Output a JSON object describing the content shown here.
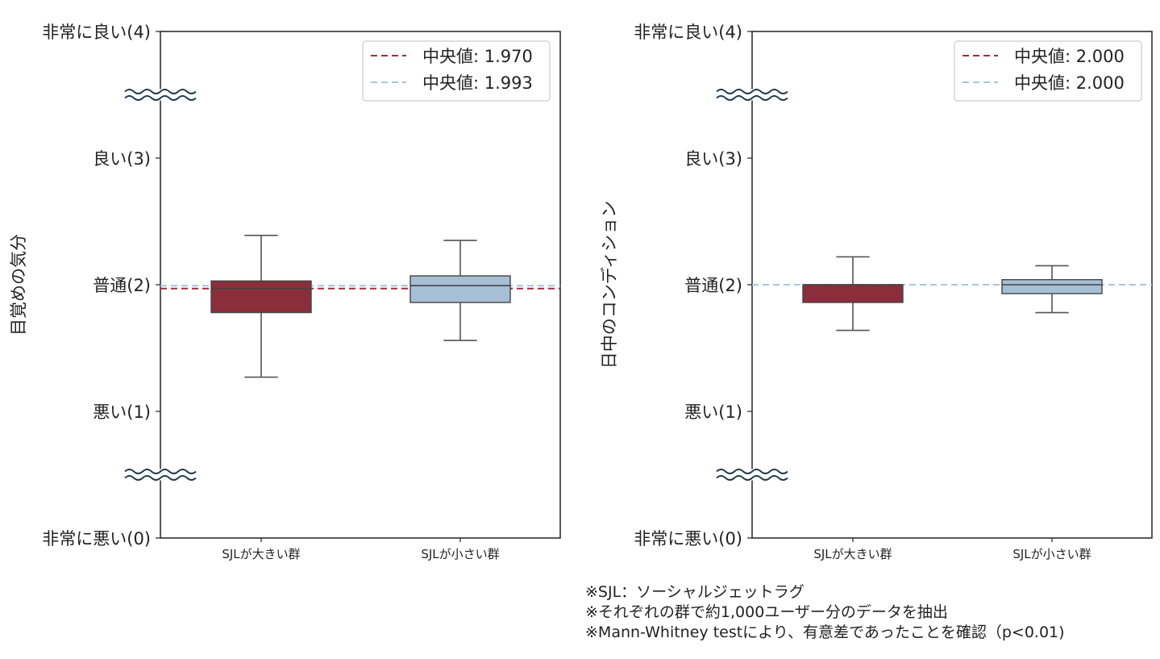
{
  "chart_data": [
    {
      "type": "box",
      "ylabel": "目覚めの気分",
      "xlabel": "",
      "ylim": [
        0,
        4
      ],
      "y_ticks": [
        {
          "value": 4,
          "label": "非常に良い(4)"
        },
        {
          "value": 3,
          "label": "良い(3)"
        },
        {
          "value": 2,
          "label": "普通(2)"
        },
        {
          "value": 1,
          "label": "悪い(1)"
        },
        {
          "value": 0,
          "label": "非常に悪い(0)"
        }
      ],
      "axis_breaks": [
        3.5,
        0.5
      ],
      "categories": [
        "SJLが大きい群",
        "SJLが小さい群"
      ],
      "boxes": [
        {
          "category": "SJLが大きい群",
          "whisker_low": 1.27,
          "q1": 1.78,
          "median": 1.97,
          "q3": 2.03,
          "whisker_high": 2.39,
          "color": "#8b2d3a"
        },
        {
          "category": "SJLが小さい群",
          "whisker_low": 1.56,
          "q1": 1.86,
          "median": 1.993,
          "q3": 2.07,
          "whisker_high": 2.35,
          "color": "#a7bfd6"
        }
      ],
      "median_lines": [
        {
          "value": 1.97,
          "color": "#a52a3a"
        },
        {
          "value": 1.993,
          "color": "#a7c6dc"
        }
      ],
      "legend": {
        "placement": "top-right",
        "entries": [
          "中央値: 1.970",
          "中央値: 1.993"
        ]
      },
      "grid": false
    },
    {
      "type": "box",
      "ylabel": "日中のコンディション",
      "xlabel": "",
      "ylim": [
        0,
        4
      ],
      "y_ticks": [
        {
          "value": 4,
          "label": "非常に良い(4)"
        },
        {
          "value": 3,
          "label": "良い(3)"
        },
        {
          "value": 2,
          "label": "普通(2)"
        },
        {
          "value": 1,
          "label": "悪い(1)"
        },
        {
          "value": 0,
          "label": "非常に悪い(0)"
        }
      ],
      "axis_breaks": [
        3.5,
        0.5
      ],
      "categories": [
        "SJLが大きい群",
        "SJLが小さい群"
      ],
      "boxes": [
        {
          "category": "SJLが大きい群",
          "whisker_low": 1.64,
          "q1": 1.86,
          "median": 2.0,
          "q3": 2.0,
          "whisker_high": 2.22,
          "color": "#8b2d3a"
        },
        {
          "category": "SJLが小さい群",
          "whisker_low": 1.78,
          "q1": 1.93,
          "median": 2.0,
          "q3": 2.04,
          "whisker_high": 2.15,
          "color": "#a7bfd6"
        }
      ],
      "median_lines": [
        {
          "value": 2.0,
          "color": "#a52a3a"
        },
        {
          "value": 2.0,
          "color": "#a7c6dc"
        }
      ],
      "legend": {
        "placement": "top-right",
        "entries": [
          "中央値: 2.000",
          "中央値: 2.000"
        ]
      },
      "grid": false
    }
  ],
  "notes": [
    "※SJL：ソーシャルジェットラグ",
    "※それぞれの群で約1,000ユーザー分のデータを抽出",
    "※Mann-Whitney testにより、有意差であったことを確認（p<0.01)"
  ]
}
